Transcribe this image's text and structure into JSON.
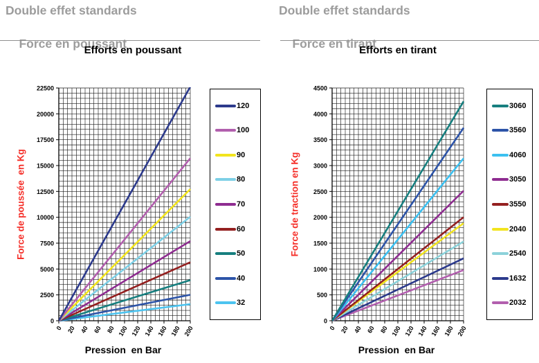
{
  "styles": {
    "header_color": "#9c9c9c",
    "axis_title_color": "#f5302a",
    "grid_color": "#1c1c1c",
    "background": "#ffffff"
  },
  "chart_data": [
    {
      "type": "line",
      "header_line1": "Double effet standards",
      "header_line2": "Force en poussant",
      "title": "Efforts en poussant",
      "xlabel": "Pression  en Bar",
      "ylabel": "Force de poussée  en Kg",
      "x": [
        0,
        200
      ],
      "xlim": [
        0,
        200
      ],
      "ylim": [
        0,
        22500
      ],
      "xticks": [
        0,
        20,
        40,
        60,
        80,
        100,
        120,
        140,
        160,
        180,
        200
      ],
      "yticks": [
        0,
        2500,
        5000,
        7500,
        10000,
        12500,
        15000,
        17500,
        20000,
        22500
      ],
      "x_minor_divisions": 30,
      "y_minor_divisions": 45,
      "grid": true,
      "legend_position": "right",
      "series": [
        {
          "name": "120",
          "color": "#2c3a8c",
          "values": [
            0,
            22620
          ]
        },
        {
          "name": "100",
          "color": "#b25fae",
          "values": [
            0,
            15708
          ]
        },
        {
          "name": "90",
          "color": "#f2e41e",
          "values": [
            0,
            12723
          ]
        },
        {
          "name": "80",
          "color": "#7ed0e6",
          "values": [
            0,
            10053
          ]
        },
        {
          "name": "70",
          "color": "#8e2c90",
          "values": [
            0,
            7697
          ]
        },
        {
          "name": "60",
          "color": "#942020",
          "values": [
            0,
            5655
          ]
        },
        {
          "name": "50",
          "color": "#177f7f",
          "values": [
            0,
            3927
          ]
        },
        {
          "name": "40",
          "color": "#2d54a8",
          "values": [
            0,
            2513
          ]
        },
        {
          "name": "32",
          "color": "#4cc4f0",
          "values": [
            0,
            1608
          ]
        }
      ]
    },
    {
      "type": "line",
      "header_line1": "Double effet standards",
      "header_line2": "Force en tirant",
      "title": "Efforts en tirant",
      "xlabel": "Pression  en Bar",
      "ylabel": "Force de traction en Kg",
      "x": [
        0,
        200
      ],
      "xlim": [
        0,
        200
      ],
      "ylim": [
        0,
        4500
      ],
      "xticks": [
        0,
        20,
        40,
        60,
        80,
        100,
        120,
        140,
        160,
        180,
        200
      ],
      "yticks": [
        0,
        500,
        1000,
        1500,
        2000,
        2500,
        3000,
        3500,
        4000,
        4500
      ],
      "x_minor_divisions": 30,
      "y_minor_divisions": 45,
      "grid": true,
      "legend_position": "right",
      "series": [
        {
          "name": "3060",
          "color": "#177f7f",
          "values": [
            0,
            4241
          ]
        },
        {
          "name": "3560",
          "color": "#2d54a8",
          "values": [
            0,
            3730
          ]
        },
        {
          "name": "4060",
          "color": "#3cc0f0",
          "values": [
            0,
            3140
          ]
        },
        {
          "name": "3050",
          "color": "#8e2c90",
          "values": [
            0,
            2513
          ]
        },
        {
          "name": "3550",
          "color": "#942020",
          "values": [
            0,
            2002
          ]
        },
        {
          "name": "2040",
          "color": "#f2e41e",
          "values": [
            0,
            1885
          ]
        },
        {
          "name": "2540",
          "color": "#8cd2da",
          "values": [
            0,
            1532
          ]
        },
        {
          "name": "1632",
          "color": "#2c3a8c",
          "values": [
            0,
            1206
          ]
        },
        {
          "name": "2032",
          "color": "#b25fae",
          "values": [
            0,
            980
          ]
        }
      ]
    }
  ]
}
